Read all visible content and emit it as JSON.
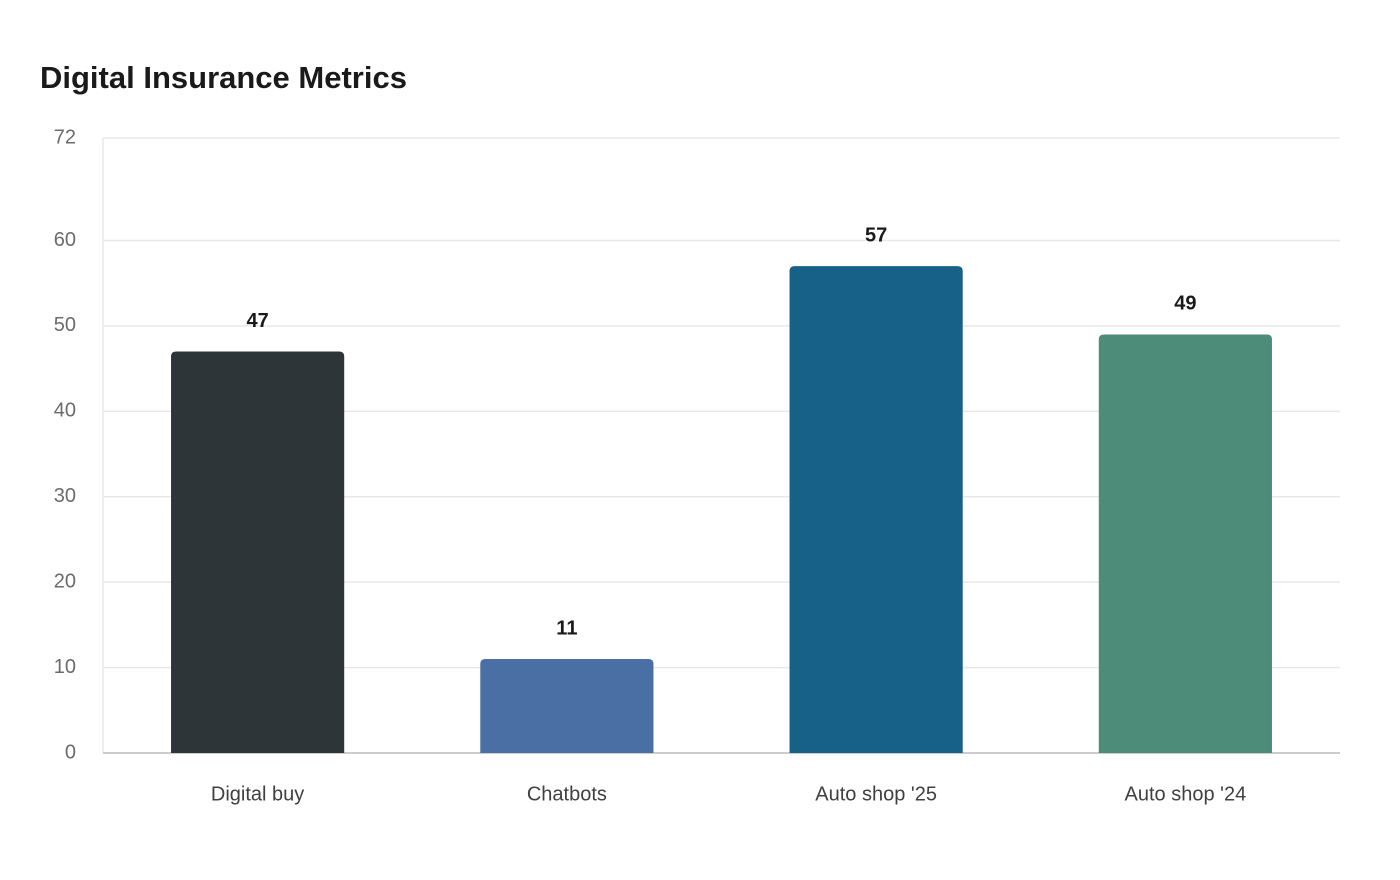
{
  "chart_data": {
    "type": "bar",
    "title": "Digital Insurance Metrics",
    "xlabel": "",
    "ylabel": "",
    "categories": [
      "Digital buy",
      "Chatbots",
      "Auto shop '25",
      "Auto shop '24"
    ],
    "values": [
      47,
      11,
      57,
      49
    ],
    "ylim": [
      0,
      72
    ],
    "yticks": [
      0,
      10,
      20,
      30,
      40,
      50,
      60,
      72
    ],
    "grid": true,
    "legend": "none",
    "colors": [
      "#2d3538",
      "#4a6fa5",
      "#176087",
      "#4e8c7a"
    ],
    "grid_color": "#e8e8e8",
    "axis_color": "#cccccc"
  }
}
